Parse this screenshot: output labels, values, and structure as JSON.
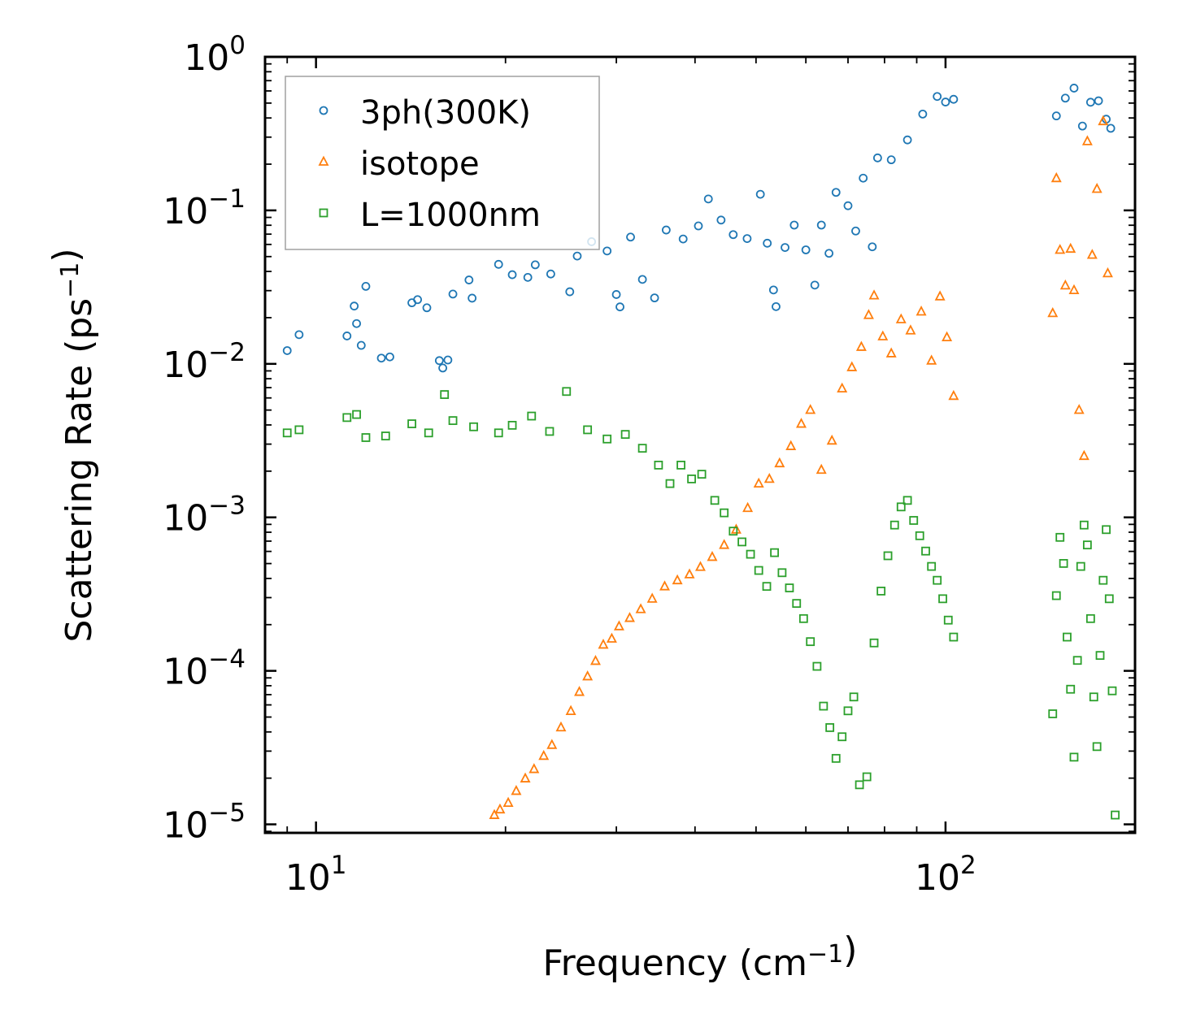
{
  "chart_data": {
    "type": "scatter",
    "xscale": "log",
    "yscale": "log",
    "xlabel": "Frequency (cm$^{-1}$)",
    "ylabel": "Scattering Rate (ps$^{-1}$)",
    "xlim": [
      8.3,
      200
    ],
    "ylim": [
      8.8e-06,
      1.0
    ],
    "xticks": [
      {
        "value": 10,
        "base": "10",
        "exp": "1"
      },
      {
        "value": 100,
        "base": "10",
        "exp": "2"
      }
    ],
    "yticks": [
      {
        "value": 1,
        "base": "10",
        "exp": "0"
      },
      {
        "value": 0.1,
        "base": "10",
        "exp": "−1"
      },
      {
        "value": 0.01,
        "base": "10",
        "exp": "−2"
      },
      {
        "value": 0.001,
        "base": "10",
        "exp": "−3"
      },
      {
        "value": 0.0001,
        "base": "10",
        "exp": "−4"
      },
      {
        "value": 1e-05,
        "base": "10",
        "exp": "−5"
      }
    ],
    "legend_position": "top-left",
    "series": [
      {
        "name": "3ph(300K)",
        "marker": "circle",
        "color": "#1f77b4",
        "points": [
          [
            9.0,
            0.0122
          ],
          [
            9.4,
            0.0155
          ],
          [
            11.2,
            0.0152
          ],
          [
            11.5,
            0.0238
          ],
          [
            11.6,
            0.0183
          ],
          [
            11.8,
            0.0132
          ],
          [
            12.0,
            0.032
          ],
          [
            12.7,
            0.0109
          ],
          [
            13.1,
            0.0111
          ],
          [
            14.2,
            0.025
          ],
          [
            14.5,
            0.0262
          ],
          [
            15.0,
            0.0232
          ],
          [
            15.7,
            0.0105
          ],
          [
            15.9,
            0.0094
          ],
          [
            16.2,
            0.0106
          ],
          [
            16.5,
            0.0285
          ],
          [
            17.5,
            0.0352
          ],
          [
            17.7,
            0.0268
          ],
          [
            19.5,
            0.0445
          ],
          [
            20.5,
            0.0381
          ],
          [
            21.7,
            0.0366
          ],
          [
            22.3,
            0.0442
          ],
          [
            23.6,
            0.0385
          ],
          [
            25.3,
            0.0295
          ],
          [
            26.0,
            0.0504
          ],
          [
            27.4,
            0.0625
          ],
          [
            29.0,
            0.0544
          ],
          [
            30.0,
            0.0283
          ],
          [
            30.4,
            0.0235
          ],
          [
            31.6,
            0.067
          ],
          [
            33.0,
            0.0355
          ],
          [
            34.5,
            0.0269
          ],
          [
            36.0,
            0.0745
          ],
          [
            38.3,
            0.0651
          ],
          [
            40.5,
            0.0792
          ],
          [
            42.0,
            0.1187
          ],
          [
            44.0,
            0.0865
          ],
          [
            46.0,
            0.0695
          ],
          [
            48.4,
            0.0655
          ],
          [
            50.8,
            0.1273
          ],
          [
            52.1,
            0.0611
          ],
          [
            53.3,
            0.0303
          ],
          [
            53.8,
            0.0236
          ],
          [
            55.6,
            0.0573
          ],
          [
            57.5,
            0.0802
          ],
          [
            60.0,
            0.0553
          ],
          [
            62.0,
            0.0326
          ],
          [
            63.5,
            0.0802
          ],
          [
            65.3,
            0.0525
          ],
          [
            67.0,
            0.131
          ],
          [
            70.0,
            0.1072
          ],
          [
            72.0,
            0.0734
          ],
          [
            74.0,
            0.1622
          ],
          [
            76.5,
            0.0579
          ],
          [
            78.0,
            0.2197
          ],
          [
            82.0,
            0.2136
          ],
          [
            87.0,
            0.2878
          ],
          [
            92.0,
            0.4241
          ],
          [
            97.0,
            0.5521
          ],
          [
            100.0,
            0.5079
          ],
          [
            103.0,
            0.5293
          ],
          [
            150.0,
            0.4125
          ],
          [
            155.0,
            0.5386
          ],
          [
            160.0,
            0.6259
          ],
          [
            165.0,
            0.3543
          ],
          [
            170.0,
            0.5064
          ],
          [
            175.0,
            0.5175
          ],
          [
            180.0,
            0.3926
          ],
          [
            183.0,
            0.3426
          ]
        ]
      },
      {
        "name": "isotope",
        "marker": "triangle",
        "color": "#ff7f0e",
        "points": [
          [
            19.2,
            1.15e-05
          ],
          [
            19.6,
            1.25e-05
          ],
          [
            20.2,
            1.38e-05
          ],
          [
            20.8,
            1.65e-05
          ],
          [
            21.5,
            1.99e-05
          ],
          [
            22.2,
            2.29e-05
          ],
          [
            23.0,
            2.79e-05
          ],
          [
            23.7,
            3.29e-05
          ],
          [
            24.5,
            4.28e-05
          ],
          [
            25.4,
            5.47e-05
          ],
          [
            26.2,
            7.29e-05
          ],
          [
            27.0,
            9.2e-05
          ],
          [
            27.8,
            0.000116
          ],
          [
            28.6,
            0.000148
          ],
          [
            29.5,
            0.000162
          ],
          [
            30.3,
            0.000195
          ],
          [
            31.5,
            0.000221
          ],
          [
            32.8,
            0.000252
          ],
          [
            34.2,
            0.000295
          ],
          [
            35.8,
            0.000355
          ],
          [
            37.5,
            0.000389
          ],
          [
            39.2,
            0.000425
          ],
          [
            40.8,
            0.000475
          ],
          [
            42.6,
            0.000552
          ],
          [
            44.5,
            0.000661
          ],
          [
            46.5,
            0.000832
          ],
          [
            48.5,
            0.00115
          ],
          [
            50.5,
            0.00166
          ],
          [
            52.5,
            0.00178
          ],
          [
            54.5,
            0.00225
          ],
          [
            56.8,
            0.00291
          ],
          [
            59.0,
            0.00407
          ],
          [
            61.0,
            0.00501
          ],
          [
            63.5,
            0.00204
          ],
          [
            66.0,
            0.00316
          ],
          [
            68.5,
            0.00691
          ],
          [
            71.0,
            0.00951
          ],
          [
            73.5,
            0.0129
          ],
          [
            75.5,
            0.0208
          ],
          [
            77.0,
            0.0279
          ],
          [
            79.5,
            0.0151
          ],
          [
            82.0,
            0.0117
          ],
          [
            85.0,
            0.0195
          ],
          [
            88.0,
            0.0165
          ],
          [
            91.5,
            0.0219
          ],
          [
            95.0,
            0.0105
          ],
          [
            98.0,
            0.0275
          ],
          [
            100.5,
            0.0149
          ],
          [
            103.0,
            0.00618
          ],
          [
            148.0,
            0.0214
          ],
          [
            150.0,
            0.162
          ],
          [
            152.0,
            0.0553
          ],
          [
            155.0,
            0.0324
          ],
          [
            158.0,
            0.0562
          ],
          [
            160.0,
            0.0302
          ],
          [
            163.0,
            0.00501
          ],
          [
            166.0,
            0.00251
          ],
          [
            168.0,
            0.282
          ],
          [
            171.0,
            0.0513
          ],
          [
            174.0,
            0.138
          ],
          [
            178.0,
            0.381
          ],
          [
            181.0,
            0.0389
          ]
        ]
      },
      {
        "name": "L=1000nm",
        "marker": "square",
        "color": "#2ca02c",
        "points": [
          [
            9.0,
            0.00355
          ],
          [
            9.4,
            0.00372
          ],
          [
            11.2,
            0.00447
          ],
          [
            11.6,
            0.00468
          ],
          [
            12.0,
            0.00331
          ],
          [
            12.9,
            0.00339
          ],
          [
            14.2,
            0.00407
          ],
          [
            15.1,
            0.00355
          ],
          [
            16.0,
            0.00631
          ],
          [
            16.5,
            0.00427
          ],
          [
            17.8,
            0.00389
          ],
          [
            19.5,
            0.00355
          ],
          [
            20.5,
            0.00398
          ],
          [
            22.0,
            0.00457
          ],
          [
            23.5,
            0.00363
          ],
          [
            25.0,
            0.00661
          ],
          [
            27.0,
            0.00372
          ],
          [
            29.0,
            0.00324
          ],
          [
            31.0,
            0.00347
          ],
          [
            33.0,
            0.00282
          ],
          [
            35.0,
            0.00219
          ],
          [
            36.5,
            0.00166
          ],
          [
            38.0,
            0.00219
          ],
          [
            39.5,
            0.00178
          ],
          [
            41.0,
            0.00191
          ],
          [
            43.0,
            0.00129
          ],
          [
            44.5,
            0.00107
          ],
          [
            46.0,
            0.000813
          ],
          [
            47.5,
            0.000692
          ],
          [
            49.0,
            0.000575
          ],
          [
            50.5,
            0.000451
          ],
          [
            52.0,
            0.000355
          ],
          [
            53.5,
            0.000589
          ],
          [
            55.0,
            0.000436
          ],
          [
            56.5,
            0.000347
          ],
          [
            58.0,
            0.000275
          ],
          [
            59.5,
            0.000219
          ],
          [
            61.0,
            0.000155
          ],
          [
            62.5,
            0.000107
          ],
          [
            64.0,
            5.89e-05
          ],
          [
            65.5,
            4.27e-05
          ],
          [
            67.0,
            2.69e-05
          ],
          [
            68.5,
            3.72e-05
          ],
          [
            70.0,
            5.49e-05
          ],
          [
            71.5,
            6.76e-05
          ],
          [
            73.0,
            1.81e-05
          ],
          [
            75.0,
            2.04e-05
          ],
          [
            77.0,
            0.000152
          ],
          [
            79.0,
            0.000331
          ],
          [
            81.0,
            0.000562
          ],
          [
            83.0,
            0.000891
          ],
          [
            85.0,
            0.00117
          ],
          [
            87.0,
            0.00129
          ],
          [
            89.0,
            0.000955
          ],
          [
            91.0,
            0.000759
          ],
          [
            93.0,
            0.000603
          ],
          [
            95.0,
            0.000479
          ],
          [
            97.0,
            0.000389
          ],
          [
            99.0,
            0.000295
          ],
          [
            101.0,
            0.000214
          ],
          [
            103.0,
            0.000166
          ],
          [
            148.0,
            5.25e-05
          ],
          [
            150.0,
            0.000309
          ],
          [
            152.0,
            0.000741
          ],
          [
            154.0,
            0.000501
          ],
          [
            156.0,
            0.000166
          ],
          [
            158.0,
            7.59e-05
          ],
          [
            160.0,
            2.74e-05
          ],
          [
            162.0,
            0.000117
          ],
          [
            164.0,
            0.000479
          ],
          [
            166.0,
            0.000891
          ],
          [
            168.0,
            0.000661
          ],
          [
            170.0,
            0.000219
          ],
          [
            172.0,
            6.76e-05
          ],
          [
            174.0,
            3.21e-05
          ],
          [
            176.0,
            0.000126
          ],
          [
            178.0,
            0.000389
          ],
          [
            180.0,
            0.000832
          ],
          [
            182.0,
            0.000295
          ],
          [
            184.0,
            7.41e-05
          ],
          [
            186.0,
            1.15e-05
          ]
        ]
      }
    ]
  }
}
